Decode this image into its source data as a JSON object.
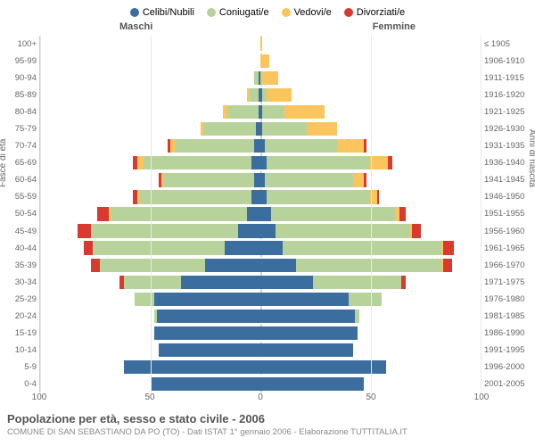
{
  "title": "Popolazione per età, sesso e stato civile - 2006",
  "subtitle": "COMUNE DI SAN SEBASTIANO DA PO (TO) - Dati ISTAT 1° gennaio 2006 - Elaborazione TUTTITALIA.IT",
  "legend": [
    {
      "label": "Celibi/Nubili",
      "color": "#3b6e9e"
    },
    {
      "label": "Coniugati/e",
      "color": "#b8d29b"
    },
    {
      "label": "Vedovi/e",
      "color": "#f9c55c"
    },
    {
      "label": "Divorziati/e",
      "color": "#d83a30"
    }
  ],
  "headers": {
    "male": "Maschi",
    "female": "Femmine"
  },
  "yLeft": {
    "title": "Fasce di età",
    "labels": [
      "100+",
      "95-99",
      "90-94",
      "85-89",
      "80-84",
      "75-79",
      "70-74",
      "65-69",
      "60-64",
      "55-59",
      "50-54",
      "45-49",
      "40-44",
      "35-39",
      "30-34",
      "25-29",
      "20-24",
      "15-19",
      "10-14",
      "5-9",
      "0-4"
    ]
  },
  "yRight": {
    "title": "Anni di nascita",
    "labels": [
      "≤ 1905",
      "1906-1910",
      "1911-1915",
      "1916-1920",
      "1921-1925",
      "1926-1930",
      "1931-1935",
      "1936-1940",
      "1941-1945",
      "1946-1950",
      "1951-1955",
      "1956-1960",
      "1961-1965",
      "1966-1970",
      "1971-1975",
      "1976-1980",
      "1981-1985",
      "1986-1990",
      "1991-1995",
      "1996-2000",
      "2001-2005"
    ]
  },
  "x": {
    "max": 100,
    "ticks": [
      100,
      50,
      0,
      50,
      100
    ]
  },
  "rows": [
    {
      "m": [
        0,
        0,
        0,
        0
      ],
      "f": [
        0,
        0,
        1,
        0
      ]
    },
    {
      "m": [
        0,
        0,
        0,
        0
      ],
      "f": [
        0,
        0,
        4,
        0
      ]
    },
    {
      "m": [
        1,
        2,
        0,
        0
      ],
      "f": [
        0,
        1,
        7,
        0
      ]
    },
    {
      "m": [
        1,
        4,
        1,
        0
      ],
      "f": [
        1,
        2,
        11,
        0
      ]
    },
    {
      "m": [
        1,
        14,
        2,
        0
      ],
      "f": [
        1,
        10,
        18,
        0
      ]
    },
    {
      "m": [
        2,
        24,
        1,
        0
      ],
      "f": [
        1,
        20,
        14,
        0
      ]
    },
    {
      "m": [
        3,
        36,
        2,
        1
      ],
      "f": [
        2,
        33,
        12,
        1
      ]
    },
    {
      "m": [
        4,
        49,
        3,
        2
      ],
      "f": [
        3,
        47,
        8,
        2
      ]
    },
    {
      "m": [
        3,
        41,
        1,
        1
      ],
      "f": [
        2,
        40,
        5,
        1
      ]
    },
    {
      "m": [
        4,
        51,
        1,
        2
      ],
      "f": [
        3,
        47,
        3,
        1
      ]
    },
    {
      "m": [
        6,
        62,
        1,
        5
      ],
      "f": [
        5,
        56,
        2,
        3
      ]
    },
    {
      "m": [
        10,
        67,
        0,
        6
      ],
      "f": [
        7,
        61,
        1,
        4
      ]
    },
    {
      "m": [
        16,
        60,
        0,
        4
      ],
      "f": [
        10,
        72,
        1,
        5
      ]
    },
    {
      "m": [
        25,
        48,
        0,
        4
      ],
      "f": [
        16,
        66,
        1,
        4
      ]
    },
    {
      "m": [
        36,
        26,
        0,
        2
      ],
      "f": [
        24,
        40,
        0,
        2
      ]
    },
    {
      "m": [
        48,
        9,
        0,
        0
      ],
      "f": [
        40,
        15,
        0,
        0
      ]
    },
    {
      "m": [
        47,
        1,
        0,
        0
      ],
      "f": [
        43,
        2,
        0,
        0
      ]
    },
    {
      "m": [
        48,
        0,
        0,
        0
      ],
      "f": [
        44,
        0,
        0,
        0
      ]
    },
    {
      "m": [
        46,
        0,
        0,
        0
      ],
      "f": [
        42,
        0,
        0,
        0
      ]
    },
    {
      "m": [
        62,
        0,
        0,
        0
      ],
      "f": [
        57,
        0,
        0,
        0
      ]
    },
    {
      "m": [
        50,
        0,
        0,
        0
      ],
      "f": [
        47,
        0,
        0,
        0
      ]
    }
  ],
  "style": {
    "background": "#ffffff",
    "grid_color": "#e8e8e8",
    "axis_color": "#cccccc",
    "text_color": "#666666",
    "title_color": "#555555",
    "title_fontsize": 13,
    "label_fontsize": 10,
    "bar_height_pct": 80
  }
}
